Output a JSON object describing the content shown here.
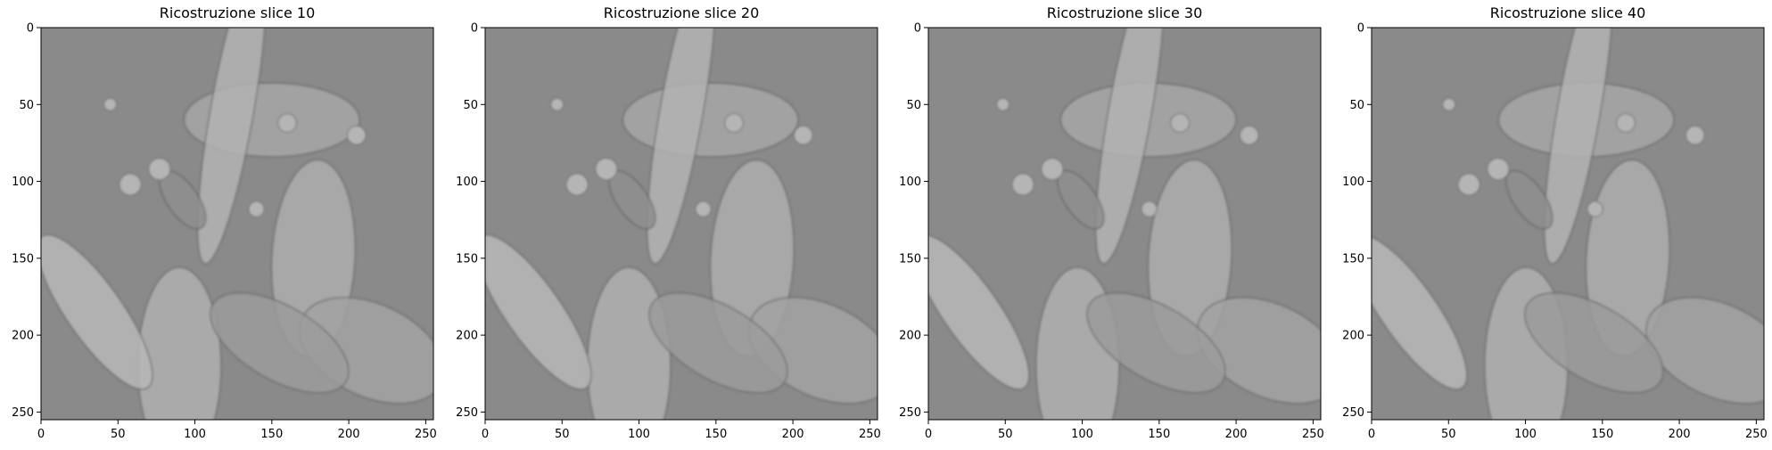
{
  "figure": {
    "background": "#ffffff",
    "colormap": "gray"
  },
  "chart_data": [
    {
      "type": "heatmap",
      "title": "Ricostruzione slice 10",
      "slice": 10,
      "xlim": [
        0,
        255
      ],
      "ylim": [
        255,
        0
      ],
      "xticks": [
        0,
        50,
        100,
        150,
        200,
        250
      ],
      "yticks": [
        0,
        50,
        100,
        150,
        200,
        250
      ],
      "grid": false
    },
    {
      "type": "heatmap",
      "title": "Ricostruzione slice 20",
      "slice": 20,
      "xlim": [
        0,
        255
      ],
      "ylim": [
        255,
        0
      ],
      "xticks": [
        0,
        50,
        100,
        150,
        200,
        250
      ],
      "yticks": [
        0,
        50,
        100,
        150,
        200,
        250
      ],
      "grid": false
    },
    {
      "type": "heatmap",
      "title": "Ricostruzione slice 30",
      "slice": 30,
      "xlim": [
        0,
        255
      ],
      "ylim": [
        255,
        0
      ],
      "xticks": [
        0,
        50,
        100,
        150,
        200,
        250
      ],
      "yticks": [
        0,
        50,
        100,
        150,
        200,
        250
      ],
      "grid": false
    },
    {
      "type": "heatmap",
      "title": "Ricostruzione slice 40",
      "slice": 40,
      "xlim": [
        0,
        255
      ],
      "ylim": [
        255,
        0
      ],
      "xticks": [
        0,
        50,
        100,
        150,
        200,
        250
      ],
      "yticks": [
        0,
        50,
        100,
        150,
        200,
        250
      ],
      "grid": false
    }
  ]
}
